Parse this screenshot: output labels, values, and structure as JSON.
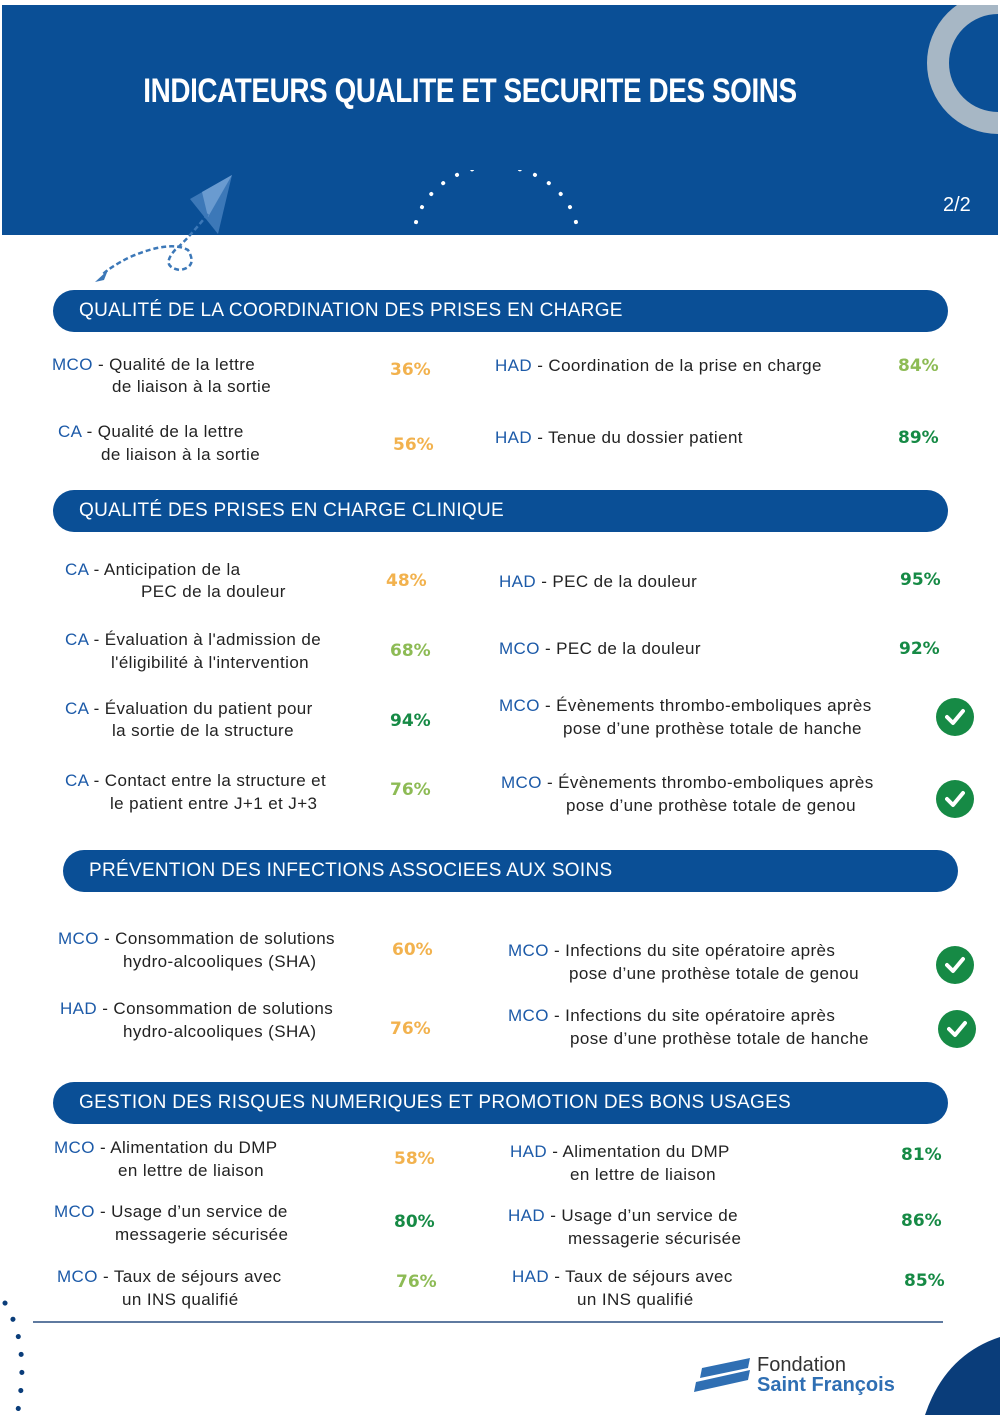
{
  "header": {
    "title": "INDICATEURS QUALITE ET SECURITE DES SOINS",
    "page": "2/2"
  },
  "colors": {
    "brand": "#0a4f96",
    "orange": "#f2b24e",
    "light_green": "#8dbb55",
    "dark_green": "#168a45"
  },
  "sections": [
    {
      "title": "QUALITÉ DE LA COORDINATION DES PRISES EN CHARGE",
      "items": [
        {
          "prefix": "MCO",
          "text": " - Qualité de la lettre",
          "text2": "de liaison à la sortie",
          "value": "36%",
          "level": "orange"
        },
        {
          "prefix": "CA",
          "text": " - Qualité de la lettre",
          "text2": "de liaison à la sortie",
          "value": "56%",
          "level": "orange"
        },
        {
          "prefix": "HAD",
          "text": " - Coordination de la prise en charge",
          "value": "84%",
          "level": "light_green"
        },
        {
          "prefix": "HAD",
          "text": " - Tenue du dossier patient",
          "value": "89%",
          "level": "dark_green"
        }
      ]
    },
    {
      "title": "QUALITÉ DES PRISES EN CHARGE CLINIQUE",
      "items": [
        {
          "prefix": "CA",
          "text": " - Anticipation de la",
          "text2": "PEC de la douleur",
          "value": "48%",
          "level": "orange"
        },
        {
          "prefix": "CA",
          "text": " - Évaluation à l'admission de",
          "text2": "l'éligibilité à l'intervention",
          "value": "68%",
          "level": "light_green"
        },
        {
          "prefix": "CA",
          "text": " - Évaluation du patient pour",
          "text2": "la sortie de la structure",
          "value": "94%",
          "level": "dark_green"
        },
        {
          "prefix": "CA",
          "text": " - Contact entre la structure et",
          "text2": "le patient entre J+1 et J+3",
          "value": "76%",
          "level": "light_green"
        },
        {
          "prefix": "HAD",
          "text": " - PEC de la douleur",
          "value": "95%",
          "level": "dark_green"
        },
        {
          "prefix": "MCO",
          "text": " - PEC de la douleur",
          "value": "92%",
          "level": "dark_green"
        },
        {
          "prefix": "MCO",
          "text": " - Évènements thrombo-emboliques après",
          "text2": "pose d’une prothèse totale de hanche",
          "icon": "check-circle-icon"
        },
        {
          "prefix": "MCO",
          "text": " - Évènements thrombo-emboliques après",
          "text2": "pose d’une prothèse totale de genou",
          "icon": "check-circle-icon"
        }
      ]
    },
    {
      "title": "PRÉVENTION DES INFECTIONS ASSOCIEES AUX SOINS",
      "items": [
        {
          "prefix": "MCO",
          "text": " - Consommation de solutions",
          "text2": "hydro-alcooliques (SHA)",
          "value": "60%",
          "level": "orange"
        },
        {
          "prefix": "HAD",
          "text": " - Consommation de solutions",
          "text2": "hydro-alcooliques (SHA)",
          "value": "76%",
          "level": "orange"
        },
        {
          "prefix": "MCO",
          "text": " - Infections du site opératoire après",
          "text2": "pose d’une prothèse totale de genou",
          "icon": "check-circle-icon"
        },
        {
          "prefix": "MCO",
          "text": " - Infections du site opératoire après",
          "text2": "pose d’une prothèse totale de hanche",
          "icon": "check-circle-icon"
        }
      ]
    },
    {
      "title": "GESTION DES RISQUES NUMERIQUES ET PROMOTION DES BONS USAGES",
      "items": [
        {
          "prefix": "MCO",
          "text": " - Alimentation du DMP",
          "text2": "en lettre de liaison",
          "value": "58%",
          "level": "orange"
        },
        {
          "prefix": "MCO",
          "text": " - Usage d’un service de",
          "text2": "messagerie sécurisée",
          "value": "80%",
          "level": "dark_green"
        },
        {
          "prefix": "MCO",
          "text": " - Taux de séjours avec",
          "text2": "un INS qualifié",
          "value": "76%",
          "level": "light_green"
        },
        {
          "prefix": "HAD",
          "text": " - Alimentation du DMP",
          "text2": "en lettre de liaison",
          "value": "81%",
          "level": "dark_green"
        },
        {
          "prefix": "HAD",
          "text": " - Usage d’un service de",
          "text2": "messagerie sécurisée",
          "value": "86%",
          "level": "dark_green"
        },
        {
          "prefix": "HAD",
          "text": " - Taux de séjours avec",
          "text2": "un INS qualifié",
          "value": "85%",
          "level": "dark_green"
        }
      ]
    }
  ],
  "logo": {
    "line1": "Fondation",
    "line2": "Saint François"
  }
}
